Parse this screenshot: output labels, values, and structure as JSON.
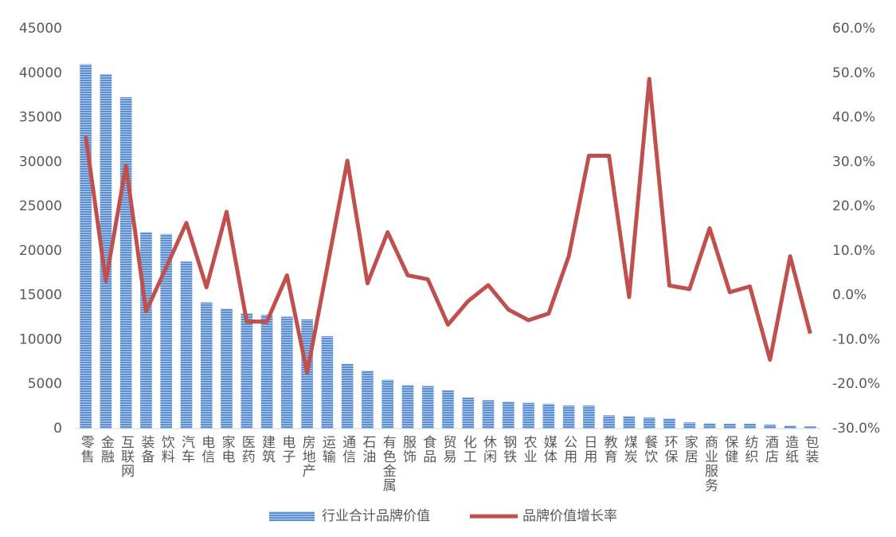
{
  "chart_data": {
    "type": "bar",
    "categories": [
      "零售",
      "金融",
      "互联网",
      "装备",
      "饮料",
      "汽车",
      "电信",
      "家电",
      "医药",
      "建筑",
      "电子",
      "房地产",
      "运输",
      "通信",
      "石油",
      "有色金属",
      "服饰",
      "食品",
      "贸易",
      "化工",
      "休闲",
      "钢铁",
      "农业",
      "媒体",
      "公用",
      "日用",
      "教育",
      "煤炭",
      "餐饮",
      "环保",
      "家居",
      "商业服务",
      "保健",
      "纺织",
      "酒店",
      "造纸",
      "包装"
    ],
    "series": [
      {
        "name": "行业合计品牌价值",
        "type": "bar",
        "color": "#5b8fd2",
        "values": [
          41000,
          39900,
          37300,
          22100,
          21900,
          18800,
          14200,
          13500,
          13000,
          12800,
          12600,
          12300,
          10400,
          7300,
          6500,
          5500,
          4900,
          4800,
          4300,
          3500,
          3200,
          3050,
          2900,
          2800,
          2600,
          2600,
          1500,
          1400,
          1250,
          1150,
          700,
          600,
          550,
          550,
          450,
          350,
          250
        ]
      },
      {
        "name": "品牌价值增长率",
        "type": "line",
        "axis": "y2",
        "color": "#c0504d",
        "values": [
          35.8,
          3.2,
          29.2,
          -3.6,
          6.3,
          16.3,
          1.8,
          18.8,
          -5.9,
          -5.9,
          4.5,
          -17.4,
          6.3,
          30.3,
          2.7,
          14.2,
          4.5,
          3.6,
          -6.6,
          -1.3,
          2.3,
          -3.2,
          -5.6,
          -4.1,
          8.8,
          31.4,
          31.4,
          -0.4,
          48.7,
          2.2,
          1.4,
          15.1,
          0.7,
          2.0,
          -14.5,
          8.8,
          -8.6
        ]
      }
    ],
    "ylim": [
      0,
      45000
    ],
    "yticks": [
      0,
      5000,
      10000,
      15000,
      20000,
      25000,
      30000,
      35000,
      40000,
      45000
    ],
    "y2lim": [
      -30,
      60
    ],
    "y2ticks": [
      {
        "value": -30,
        "label": "-30.0%"
      },
      {
        "value": -20,
        "label": "-20.0%"
      },
      {
        "value": -10,
        "label": "-10.0%"
      },
      {
        "value": 0,
        "label": "0.0%"
      },
      {
        "value": 10,
        "label": "10.0%"
      },
      {
        "value": 20,
        "label": "20.0%"
      },
      {
        "value": 30,
        "label": "30.0%"
      },
      {
        "value": 40,
        "label": "40.0%"
      },
      {
        "value": 50,
        "label": "50.0%"
      },
      {
        "value": 60,
        "label": "60.0%"
      }
    ],
    "legend": "bottom"
  }
}
